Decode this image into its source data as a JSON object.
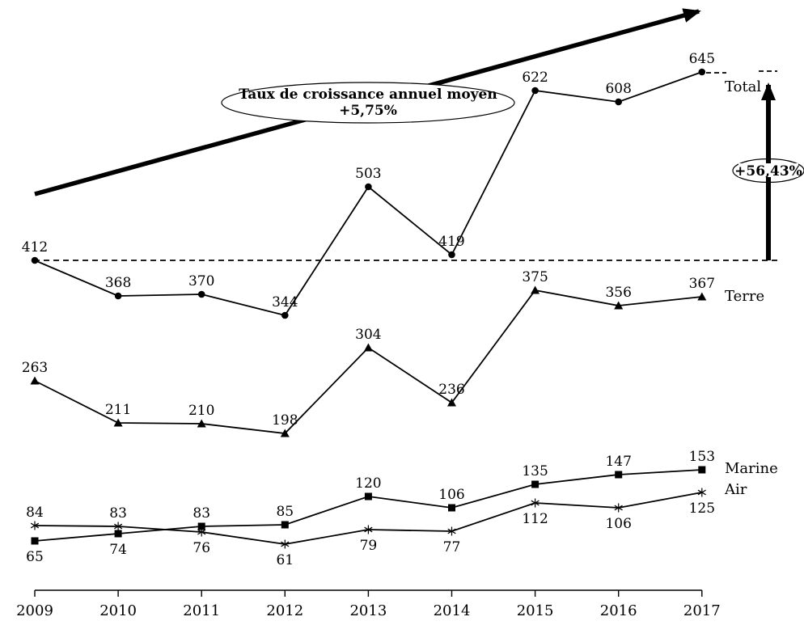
{
  "chart_data": {
    "type": "line",
    "title": "",
    "categories": [
      "2009",
      "2010",
      "2011",
      "2012",
      "2013",
      "2014",
      "2015",
      "2016",
      "2017"
    ],
    "series": [
      {
        "name": "Total",
        "marker": "circle",
        "values": [
          412,
          368,
          370,
          344,
          503,
          419,
          622,
          608,
          645
        ],
        "label_positions": [
          "above",
          "above",
          "above",
          "above",
          "above",
          "above",
          "above",
          "above",
          "above"
        ]
      },
      {
        "name": "Terre",
        "marker": "triangle",
        "values": [
          263,
          211,
          210,
          198,
          304,
          236,
          375,
          356,
          367
        ],
        "label_positions": [
          "above",
          "above",
          "above",
          "above",
          "above",
          "above",
          "above",
          "above",
          "above"
        ]
      },
      {
        "name": "Marine",
        "marker": "square",
        "values": [
          65,
          74,
          83,
          85,
          120,
          106,
          135,
          147,
          153
        ],
        "label_positions": [
          "below",
          "below",
          "above",
          "above",
          "above",
          "above",
          "above",
          "above",
          "above"
        ]
      },
      {
        "name": "Air",
        "marker": "asterisk",
        "values": [
          84,
          83,
          76,
          61,
          79,
          77,
          112,
          106,
          125
        ],
        "label_positions": [
          "above",
          "above",
          "below",
          "below",
          "below",
          "below",
          "below",
          "below",
          "below"
        ]
      }
    ],
    "annotations": {
      "growth_ellipse_line1": "Taux de croissance annuel moyen",
      "growth_ellipse_line2": "+5,75%",
      "increase_label": "+56,43%",
      "baseline_value": 412
    },
    "ylim": [
      0,
      700
    ],
    "grid": false,
    "legend_position": "right-of-last-point",
    "colors": {
      "ink": "#000000",
      "background": "#ffffff"
    }
  }
}
